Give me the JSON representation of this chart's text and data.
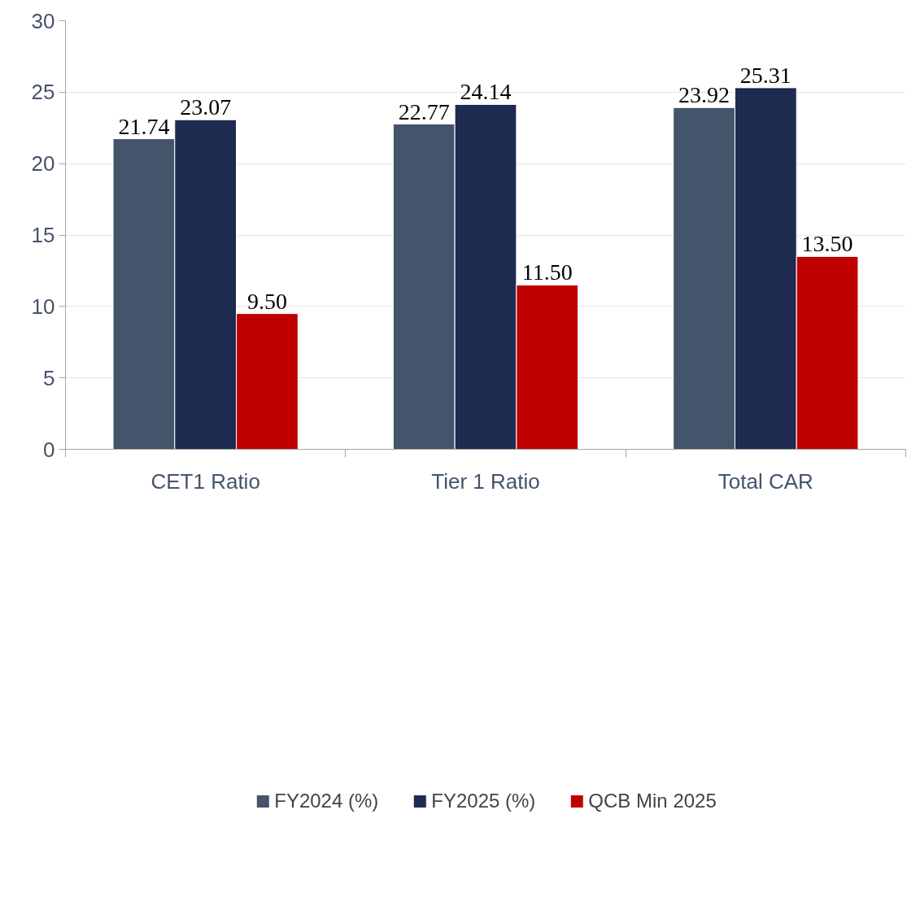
{
  "chart_data": {
    "type": "bar",
    "categories": [
      "CET1 Ratio",
      "Tier 1 Ratio",
      "Total CAR"
    ],
    "series": [
      {
        "name": "FY2024 (%)",
        "color": "#44546a",
        "values": [
          21.74,
          22.77,
          23.92
        ],
        "value_labels": [
          "21.74",
          "22.77",
          "23.92"
        ]
      },
      {
        "name": "FY2025 (%)",
        "color": "#1f2a50",
        "values": [
          23.07,
          24.14,
          25.31
        ],
        "value_labels": [
          "23.07",
          "24.14",
          "25.31"
        ]
      },
      {
        "name": "QCB Min 2025",
        "color": "#c00000",
        "values": [
          9.5,
          11.5,
          13.5
        ],
        "value_labels": [
          "9.50",
          "11.50",
          "13.50"
        ]
      }
    ],
    "ylim": [
      0,
      30
    ],
    "yticks": [
      0,
      5,
      10,
      15,
      20,
      25,
      30
    ],
    "grid": "y",
    "legend": "bottom"
  }
}
